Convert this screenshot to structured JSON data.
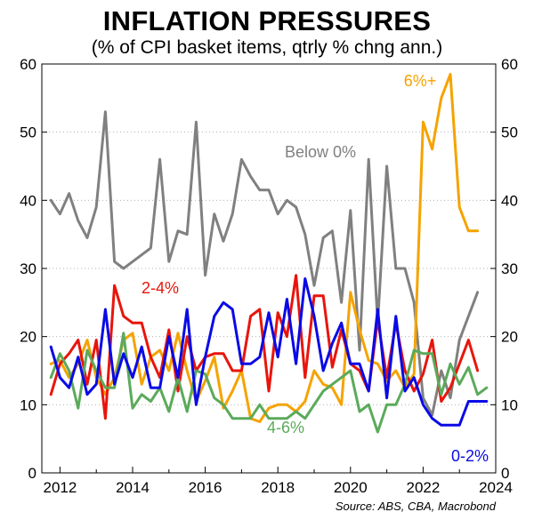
{
  "chart_data": {
    "type": "line",
    "title": "INFLATION PRESSURES",
    "subtitle": "(% of CPI basket items, qtrly % chng ann.)",
    "source": "Source: ABS, CBA, Macrobond",
    "ylim": [
      0,
      60
    ],
    "xlim": [
      2011.5,
      2024.0
    ],
    "yticks": [
      "0",
      "10",
      "20",
      "30",
      "40",
      "50",
      "60"
    ],
    "xticks": [
      "2012",
      "2014",
      "2016",
      "2018",
      "2020",
      "2022",
      "2024"
    ],
    "grid": "horizontal dotted",
    "x": [
      2011.75,
      2012.0,
      2012.25,
      2012.5,
      2012.75,
      2013.0,
      2013.25,
      2013.5,
      2013.75,
      2014.0,
      2014.25,
      2014.5,
      2014.75,
      2015.0,
      2015.25,
      2015.5,
      2015.75,
      2016.0,
      2016.25,
      2016.5,
      2016.75,
      2017.0,
      2017.25,
      2017.5,
      2017.75,
      2018.0,
      2018.25,
      2018.5,
      2018.75,
      2019.0,
      2019.25,
      2019.5,
      2019.75,
      2020.0,
      2020.25,
      2020.5,
      2020.75,
      2021.0,
      2021.25,
      2021.5,
      2021.75,
      2022.0,
      2022.25,
      2022.5,
      2022.75,
      2023.0,
      2023.25,
      2023.5,
      2023.75
    ],
    "series": [
      {
        "name": "Below 0%",
        "label": "Below 0%",
        "color": "#808080",
        "values": [
          40,
          38,
          41,
          37,
          34.5,
          39,
          53,
          31,
          30,
          31,
          32,
          33,
          46,
          31,
          35.5,
          35,
          51.5,
          29,
          38,
          34,
          38,
          46,
          43.5,
          41.5,
          41.5,
          38,
          40,
          39,
          35,
          27.5,
          34.5,
          35.5,
          25,
          38.5,
          18,
          46,
          22,
          45,
          30,
          30,
          25,
          11,
          8.5,
          15,
          11,
          19.5,
          23,
          26.5,
          null
        ]
      },
      {
        "name": "6%+",
        "label": "6%+",
        "color": "#F5A300",
        "values": [
          16,
          16.5,
          14,
          16,
          19.5,
          14,
          11.5,
          14,
          19.5,
          20.5,
          13,
          17,
          18,
          15,
          20.5,
          15,
          10.5,
          13.5,
          17,
          9.5,
          12,
          15,
          8,
          7.5,
          9.5,
          10,
          10,
          9,
          10.5,
          15,
          13,
          12.5,
          10,
          26.5,
          21,
          16.5,
          16,
          13.5,
          15,
          12.5,
          14.5,
          51.5,
          47.5,
          55,
          58.5,
          39,
          35.5,
          35.5,
          null
        ]
      },
      {
        "name": "2-4%",
        "label": "2-4%",
        "color": "#E8150C",
        "values": [
          11.5,
          16,
          17.5,
          19.5,
          13,
          19.5,
          8,
          27.5,
          23,
          22,
          22,
          17,
          14,
          21,
          12,
          20,
          15,
          17,
          17.5,
          17.5,
          15,
          15,
          23,
          24,
          12,
          23.5,
          20,
          29,
          14,
          26,
          26,
          15.5,
          21,
          16,
          15,
          12,
          22.5,
          14,
          22,
          15,
          12,
          14.5,
          19.5,
          10.5,
          12.5,
          16,
          19.5,
          15,
          null
        ]
      },
      {
        "name": "4-6%",
        "label": "4-6%",
        "color": "#5BAA5B",
        "values": [
          14,
          17.5,
          15,
          9.5,
          18,
          15,
          12.5,
          12.5,
          20.5,
          9.5,
          11.5,
          10.5,
          12.5,
          9,
          14,
          9,
          15,
          14.5,
          11,
          10,
          8,
          8,
          8,
          10,
          8,
          8,
          8,
          9,
          8,
          10,
          12,
          13,
          14,
          15,
          9,
          10,
          6,
          10,
          10,
          13,
          18,
          17.5,
          17.5,
          11.5,
          16,
          13,
          15.5,
          11.5,
          12.5
        ]
      },
      {
        "name": "0-2%",
        "label": "0-2%",
        "color": "#0A0AE6",
        "values": [
          18.5,
          14,
          12.5,
          17,
          11.5,
          13,
          24,
          13,
          17.5,
          14,
          18.5,
          12.5,
          12.5,
          20,
          14,
          24,
          10,
          17,
          23,
          25,
          24,
          16,
          16,
          17,
          23.5,
          17,
          25.5,
          16,
          28.5,
          23,
          15,
          19,
          22,
          16,
          16,
          12,
          24,
          11,
          23,
          12,
          14,
          10,
          8,
          7,
          7,
          7,
          10.5,
          10.5,
          10.5
        ]
      }
    ]
  }
}
